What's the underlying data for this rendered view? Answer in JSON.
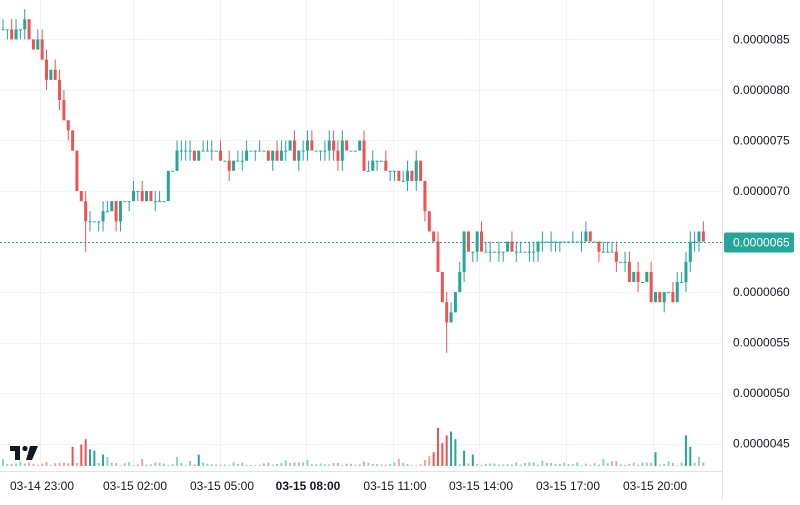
{
  "chart_data": {
    "type": "candlestick",
    "y_axis": {
      "position": "right",
      "tick_labels": [
        "0.0000085",
        "0.0000080",
        "0.0000075",
        "0.0000070",
        "0.0000065",
        "0.0000060",
        "0.0000055",
        "0.0000050",
        "0.0000045"
      ],
      "ticks": [
        8.5e-06,
        8e-06,
        7.5e-06,
        7e-06,
        6.5e-06,
        6e-06,
        5.5e-06,
        5e-06,
        4.5e-06
      ],
      "ylim": [
        4.23e-06,
        8.89e-06
      ]
    },
    "x_axis": {
      "tick_labels": [
        "03-14 23:00",
        "03-15 02:00",
        "03-15 05:00",
        "03-15 08:00",
        "03-15 11:00",
        "03-15 14:00",
        "03-15 17:00",
        "03-15 20:00"
      ],
      "bold_tick_index": 3,
      "time_range_hours": [
        "03-14 22:40",
        "03-15 23:25"
      ]
    },
    "current_price": {
      "label": "0.0000065",
      "value": 6.5e-06,
      "color": "#26a69a"
    },
    "grid": true,
    "colors": {
      "up": "#26a69a",
      "down": "#ef5350",
      "grid": "#f0f3f7",
      "axis_text": "#131722",
      "price_line": "#26a69a"
    },
    "price_anchors": [
      [
        0,
        8.6e-06
      ],
      [
        4,
        8.6e-06
      ],
      [
        8,
        8.4e-06
      ],
      [
        12,
        8e-06
      ],
      [
        14,
        7.8e-06
      ],
      [
        16,
        7.4e-06
      ],
      [
        17.5,
        7e-06
      ],
      [
        19.5,
        6.7e-06
      ],
      [
        24,
        6.8e-06
      ],
      [
        30,
        6.9e-06
      ],
      [
        36,
        6.9e-06
      ],
      [
        40,
        7.4e-06
      ],
      [
        44,
        7.4e-06
      ],
      [
        48,
        7.4e-06
      ],
      [
        52,
        7.3e-06
      ],
      [
        60,
        7.4e-06
      ],
      [
        70,
        7.4e-06
      ],
      [
        78,
        7.4e-06
      ],
      [
        86,
        7.3e-06
      ],
      [
        92,
        7.2e-06
      ],
      [
        96,
        7.2e-06
      ],
      [
        98,
        6.6e-06
      ],
      [
        100,
        6.2e-06
      ],
      [
        102,
        5.6e-06
      ],
      [
        104,
        6e-06
      ],
      [
        106,
        6.5e-06
      ],
      [
        112,
        6.4e-06
      ],
      [
        120,
        6.4e-06
      ],
      [
        126,
        6.5e-06
      ],
      [
        134,
        6.5e-06
      ],
      [
        142,
        6.3e-06
      ],
      [
        147,
        6.1e-06
      ],
      [
        150,
        6e-06
      ],
      [
        154,
        6e-06
      ],
      [
        156,
        6e-06
      ],
      [
        158,
        6.5e-06
      ],
      [
        161,
        6.6e-06
      ]
    ],
    "volume_spikes": [
      [
        0,
        9
      ],
      [
        16,
        25
      ],
      [
        18,
        28
      ],
      [
        19,
        35
      ],
      [
        20,
        22
      ],
      [
        21,
        20
      ],
      [
        23,
        15
      ],
      [
        24,
        12
      ],
      [
        40,
        12
      ],
      [
        45,
        15
      ],
      [
        98,
        13
      ],
      [
        99,
        18
      ],
      [
        100,
        50
      ],
      [
        101,
        30
      ],
      [
        102,
        40
      ],
      [
        103,
        45
      ],
      [
        104,
        35
      ],
      [
        106,
        20
      ],
      [
        108,
        15
      ],
      [
        150,
        18
      ],
      [
        157,
        40
      ],
      [
        158,
        25
      ],
      [
        160,
        12
      ]
    ],
    "candle_count": 162
  }
}
